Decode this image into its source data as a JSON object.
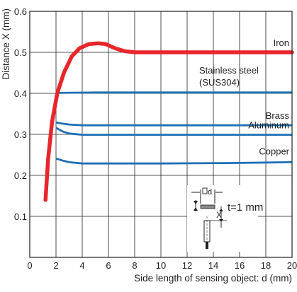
{
  "chart_data": {
    "type": "line",
    "title": "",
    "xlabel": "Side length of sensing object: d (mm)",
    "ylabel": "Distance X (mm)",
    "xlim": [
      0,
      20
    ],
    "ylim": [
      0,
      0.6
    ],
    "x_ticks": [
      "0",
      "2",
      "4",
      "6",
      "8",
      "10",
      "12",
      "14",
      "16",
      "18",
      "20"
    ],
    "y_ticks": [
      "0.1",
      "0.2",
      "0.3",
      "0.4",
      "0.5",
      "0.6"
    ],
    "grid": true,
    "series": [
      {
        "name": "Iron",
        "color": "#e8262c",
        "points": [
          [
            1.2,
            0.14
          ],
          [
            1.4,
            0.24
          ],
          [
            1.7,
            0.33
          ],
          [
            2.1,
            0.4
          ],
          [
            2.6,
            0.45
          ],
          [
            3.2,
            0.49
          ],
          [
            3.8,
            0.51
          ],
          [
            4.5,
            0.52
          ],
          [
            5.2,
            0.522
          ],
          [
            5.8,
            0.52
          ],
          [
            6.5,
            0.51
          ],
          [
            7.2,
            0.503
          ],
          [
            8,
            0.5
          ],
          [
            10,
            0.5
          ],
          [
            14,
            0.5
          ],
          [
            20,
            0.5
          ]
        ]
      },
      {
        "name": "Stainless steel (SUS304)",
        "color": "#1f6fb5",
        "points": [
          [
            2,
            0.401
          ],
          [
            5,
            0.402
          ],
          [
            10,
            0.402
          ],
          [
            15,
            0.402
          ],
          [
            20,
            0.402
          ]
        ]
      },
      {
        "name": "Brass",
        "color": "#1f6fb5",
        "points": [
          [
            2,
            0.329
          ],
          [
            2.5,
            0.326
          ],
          [
            3,
            0.324
          ],
          [
            4,
            0.322
          ],
          [
            6,
            0.322
          ],
          [
            10,
            0.322
          ],
          [
            15,
            0.322
          ],
          [
            20,
            0.322
          ]
        ]
      },
      {
        "name": "Aluminum",
        "color": "#1f6fb5",
        "points": [
          [
            2,
            0.316
          ],
          [
            2.5,
            0.307
          ],
          [
            3,
            0.302
          ],
          [
            4,
            0.299
          ],
          [
            6,
            0.299
          ],
          [
            10,
            0.299
          ],
          [
            15,
            0.299
          ],
          [
            20,
            0.299
          ]
        ]
      },
      {
        "name": "Copper",
        "color": "#1f6fb5",
        "points": [
          [
            2,
            0.241
          ],
          [
            2.5,
            0.236
          ],
          [
            3,
            0.232
          ],
          [
            4,
            0.229
          ],
          [
            6,
            0.229
          ],
          [
            10,
            0.229
          ],
          [
            15,
            0.23
          ],
          [
            20,
            0.232
          ]
        ]
      }
    ],
    "inset": {
      "d_label": "d",
      "x_label": "X",
      "thickness_label": "t=1 mm"
    }
  }
}
